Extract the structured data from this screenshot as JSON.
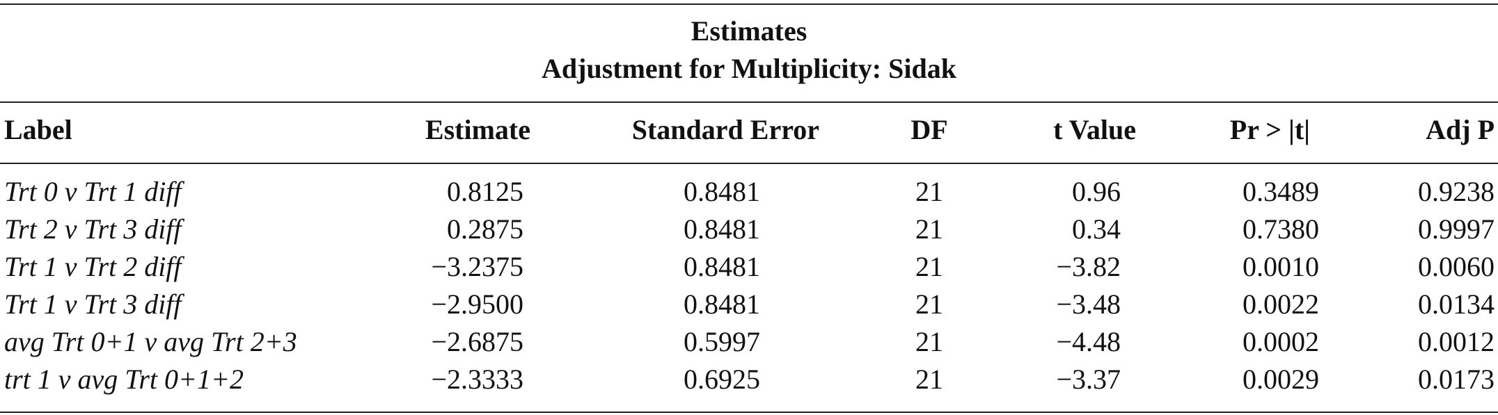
{
  "table": {
    "title": "Estimates",
    "subtitle": "Adjustment for Multiplicity: Sidak",
    "columns": {
      "label": "Label",
      "estimate": "Estimate",
      "std_error": "Standard Error",
      "df": "DF",
      "t_value": "t Value",
      "pr": "Pr > |t|",
      "adj_p": "Adj P"
    },
    "rows": [
      {
        "label": "Trt 0 v Trt 1 diff",
        "estimate": "0.8125",
        "std_error": "0.8481",
        "df": "21",
        "t_value": "0.96",
        "pr": "0.3489",
        "adj_p": "0.9238"
      },
      {
        "label": "Trt 2 v Trt 3 diff",
        "estimate": "0.2875",
        "std_error": "0.8481",
        "df": "21",
        "t_value": "0.34",
        "pr": "0.7380",
        "adj_p": "0.9997"
      },
      {
        "label": "Trt 1 v Trt 2 diff",
        "estimate": "−3.2375",
        "std_error": "0.8481",
        "df": "21",
        "t_value": "−3.82",
        "pr": "0.0010",
        "adj_p": "0.0060"
      },
      {
        "label": "Trt 1 v Trt 3 diff",
        "estimate": "−2.9500",
        "std_error": "0.8481",
        "df": "21",
        "t_value": "−3.48",
        "pr": "0.0022",
        "adj_p": "0.0134"
      },
      {
        "label": "avg Trt 0+1 v avg Trt 2+3",
        "estimate": "−2.6875",
        "std_error": "0.5997",
        "df": "21",
        "t_value": "−4.48",
        "pr": "0.0002",
        "adj_p": "0.0012"
      },
      {
        "label": "trt 1 v avg Trt 0+1+2",
        "estimate": "−2.3333",
        "std_error": "0.6925",
        "df": "21",
        "t_value": "−3.37",
        "pr": "0.0029",
        "adj_p": "0.0173"
      }
    ]
  }
}
